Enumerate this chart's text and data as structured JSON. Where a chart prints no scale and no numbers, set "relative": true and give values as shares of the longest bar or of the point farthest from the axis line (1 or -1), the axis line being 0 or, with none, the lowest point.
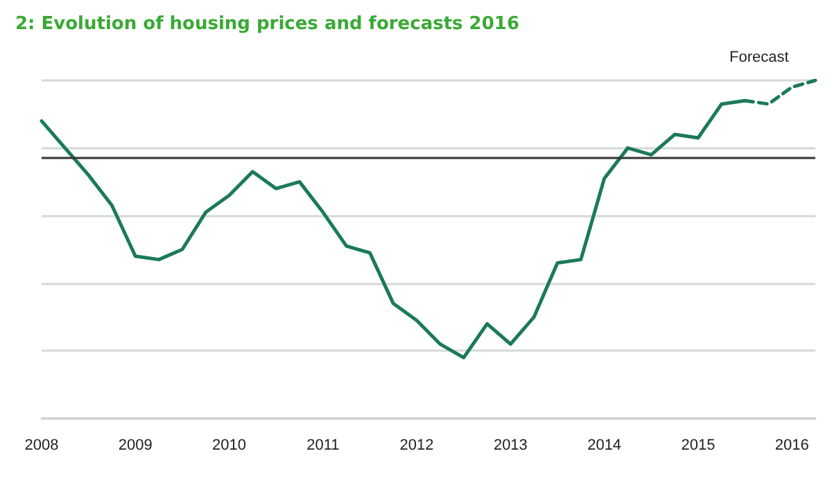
{
  "chart_data": {
    "type": "line",
    "title": "2: Evolution of housing prices and forecasts 2016",
    "relative": true,
    "series": [
      {
        "color": "#1b7a57",
        "line_style": "solid",
        "x": [
          2008,
          2008.25,
          2008.5,
          2008.75,
          2009,
          2009.25,
          2009.5,
          2009.75,
          2010,
          2010.25,
          2010.5,
          2010.75,
          2011,
          2011.25,
          2011.5,
          2011.75,
          2012,
          2012.25,
          2012.5,
          2012.75,
          2013,
          2013.25,
          2013.5,
          2013.75,
          2014,
          2014.25,
          2014.5,
          2014.75,
          2015,
          2015.25,
          2015.5
        ],
        "values": [
          0.88,
          0.8,
          0.72,
          0.63,
          0.48,
          0.47,
          0.5,
          0.61,
          0.66,
          0.73,
          0.68,
          0.7,
          0.61,
          0.51,
          0.49,
          0.34,
          0.29,
          0.22,
          0.18,
          0.28,
          0.22,
          0.3,
          0.46,
          0.47,
          0.71,
          0.8,
          0.78,
          0.84,
          0.83,
          0.93,
          0.94
        ]
      },
      {
        "color": "#1b7a57",
        "line_style": "dashed",
        "x": [
          2015.5,
          2015.75,
          2016,
          2016.25
        ],
        "values": [
          0.94,
          0.93,
          0.98,
          1.0
        ]
      }
    ],
    "xlim": [
      2008,
      2016.25
    ],
    "xticks": [
      2008,
      2009,
      2010,
      2011,
      2012,
      2013,
      2014,
      2015,
      2016
    ],
    "ref_lines": [
      {
        "axis": "y",
        "value": 0.77,
        "color": "#333333"
      }
    ],
    "annotations": [
      "Forecast"
    ],
    "grid": "y",
    "marker": "none",
    "legend": false
  }
}
